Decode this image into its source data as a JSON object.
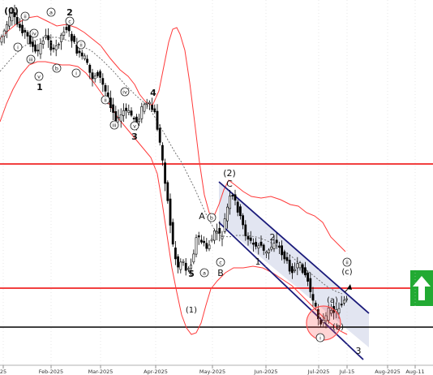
{
  "chart_data": {
    "type": "candlestick",
    "x_axis": {
      "ticks": [
        "25",
        "Feb-2025",
        "Mar-2025",
        "Apr-2025",
        "May-2025",
        "Jun-2025",
        "Jul-2025",
        "Jul-15",
        "Aug-2025",
        "Aug-11"
      ]
    },
    "colors": {
      "envelope": "#ff3a3a",
      "horizontal_levels": "#ee0000",
      "support_line": "#000000",
      "channel": "#1a1a7a",
      "channel_fill": "#dde1ef",
      "ma": "#666666",
      "candles": "#000000",
      "arrow_box": "#22aa33",
      "target_circle": "#ff5555"
    },
    "wave_labels": [
      {
        "id": "w0",
        "text": "(0)"
      },
      {
        "id": "wa1",
        "text": "a"
      },
      {
        "id": "w2t",
        "text": "2"
      },
      {
        "id": "wii1",
        "text": "ii"
      },
      {
        "id": "wi1",
        "text": "i"
      },
      {
        "id": "wiv1",
        "text": "iv"
      },
      {
        "id": "wiii1",
        "text": "iii"
      },
      {
        "id": "wv1",
        "text": "v"
      },
      {
        "id": "w1",
        "text": "1"
      },
      {
        "id": "wb1",
        "text": "b"
      },
      {
        "id": "wc1",
        "text": "c"
      },
      {
        "id": "wii2",
        "text": "ii"
      },
      {
        "id": "wi2",
        "text": "i"
      },
      {
        "id": "wii3",
        "text": "ii"
      },
      {
        "id": "wiv2",
        "text": "iv"
      },
      {
        "id": "wiii2",
        "text": "iii"
      },
      {
        "id": "wv2",
        "text": "v"
      },
      {
        "id": "w3a",
        "text": "3"
      },
      {
        "id": "w4",
        "text": "4"
      },
      {
        "id": "w5",
        "text": "5"
      },
      {
        "id": "w1p",
        "text": "(1)"
      },
      {
        "id": "wA",
        "text": "A"
      },
      {
        "id": "wB",
        "text": "B"
      },
      {
        "id": "wa2",
        "text": "a"
      },
      {
        "id": "wb2",
        "text": "b"
      },
      {
        "id": "wc2",
        "text": "c"
      },
      {
        "id": "w2p",
        "text": "(2)"
      },
      {
        "id": "wC",
        "text": "C"
      },
      {
        "id": "w1b",
        "text": "1"
      },
      {
        "id": "w2b",
        "text": "2"
      },
      {
        "id": "wa3",
        "text": "(a)"
      },
      {
        "id": "wb3",
        "text": "(b)"
      },
      {
        "id": "wc3",
        "text": "(c)"
      },
      {
        "id": "wii4",
        "text": "ii"
      },
      {
        "id": "wi4",
        "text": "i"
      },
      {
        "id": "w3b",
        "text": "3"
      }
    ]
  }
}
